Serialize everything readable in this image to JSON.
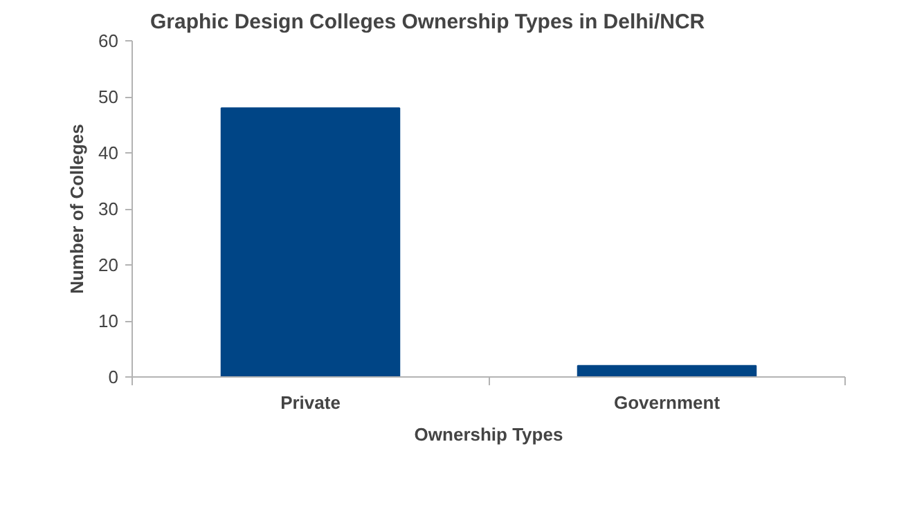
{
  "chart_data": {
    "type": "bar",
    "title": "Graphic Design Colleges Ownership Types in Delhi/NCR",
    "xlabel": "Ownership Types",
    "ylabel": "Number of Colleges",
    "categories": [
      "Private",
      "Government"
    ],
    "values": [
      48,
      2
    ],
    "color": "#004586",
    "ylim": [
      0,
      60
    ],
    "yticks": [
      0,
      10,
      20,
      30,
      40,
      50,
      60
    ],
    "grid": false
  }
}
